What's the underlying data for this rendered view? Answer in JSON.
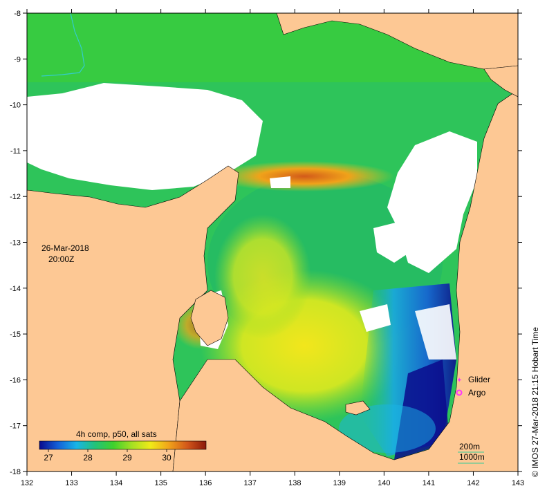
{
  "map": {
    "timestamp_date": "26-Mar-2018",
    "timestamp_time": "20:00Z",
    "credit": "© IMOS 27-Mar-2018 21:15 Hobart Time",
    "lon_ticks": [
      "132",
      "133",
      "134",
      "135",
      "136",
      "137",
      "138",
      "139",
      "140",
      "141",
      "142",
      "143"
    ],
    "lat_ticks": [
      "-8",
      "-9",
      "-10",
      "-11",
      "-12",
      "-13",
      "-14",
      "-15",
      "-16",
      "-17",
      "-18"
    ]
  },
  "colorbar": {
    "title": "4h comp, p50, all sats",
    "ticks": [
      "27",
      "28",
      "29",
      "30"
    ],
    "colors": [
      "#0a0a8c",
      "#1560d8",
      "#19b4e6",
      "#22c27a",
      "#3fd12d",
      "#a6e022",
      "#f0ea18",
      "#f0a21a",
      "#d2561a",
      "#8c1a0a"
    ]
  },
  "legend": {
    "glider_label": "Glider",
    "argo_label": "Argo",
    "glider_color": "#ff33ff",
    "argo_color": "#ff33ff"
  },
  "scale": {
    "contour_200": "200m",
    "contour_1000": "1000m",
    "line_color": "#33cc99"
  },
  "colors": {
    "land": "#fdc894",
    "cloud": "#ffffff",
    "river": "#33cccc"
  }
}
